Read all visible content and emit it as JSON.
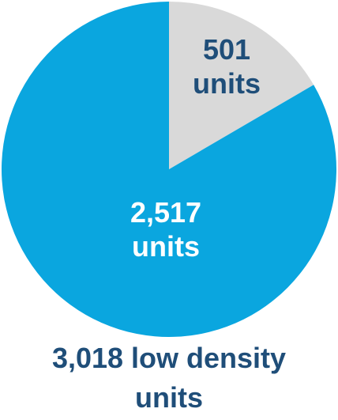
{
  "chart_data": {
    "type": "pie",
    "title": "3,018 low density units",
    "categories": [
      null,
      null
    ],
    "values": [
      501,
      2517
    ],
    "value_labels": [
      "501 units",
      "2,517 units"
    ],
    "colors": [
      "#d9d9d9",
      "#0aa6df"
    ]
  }
}
